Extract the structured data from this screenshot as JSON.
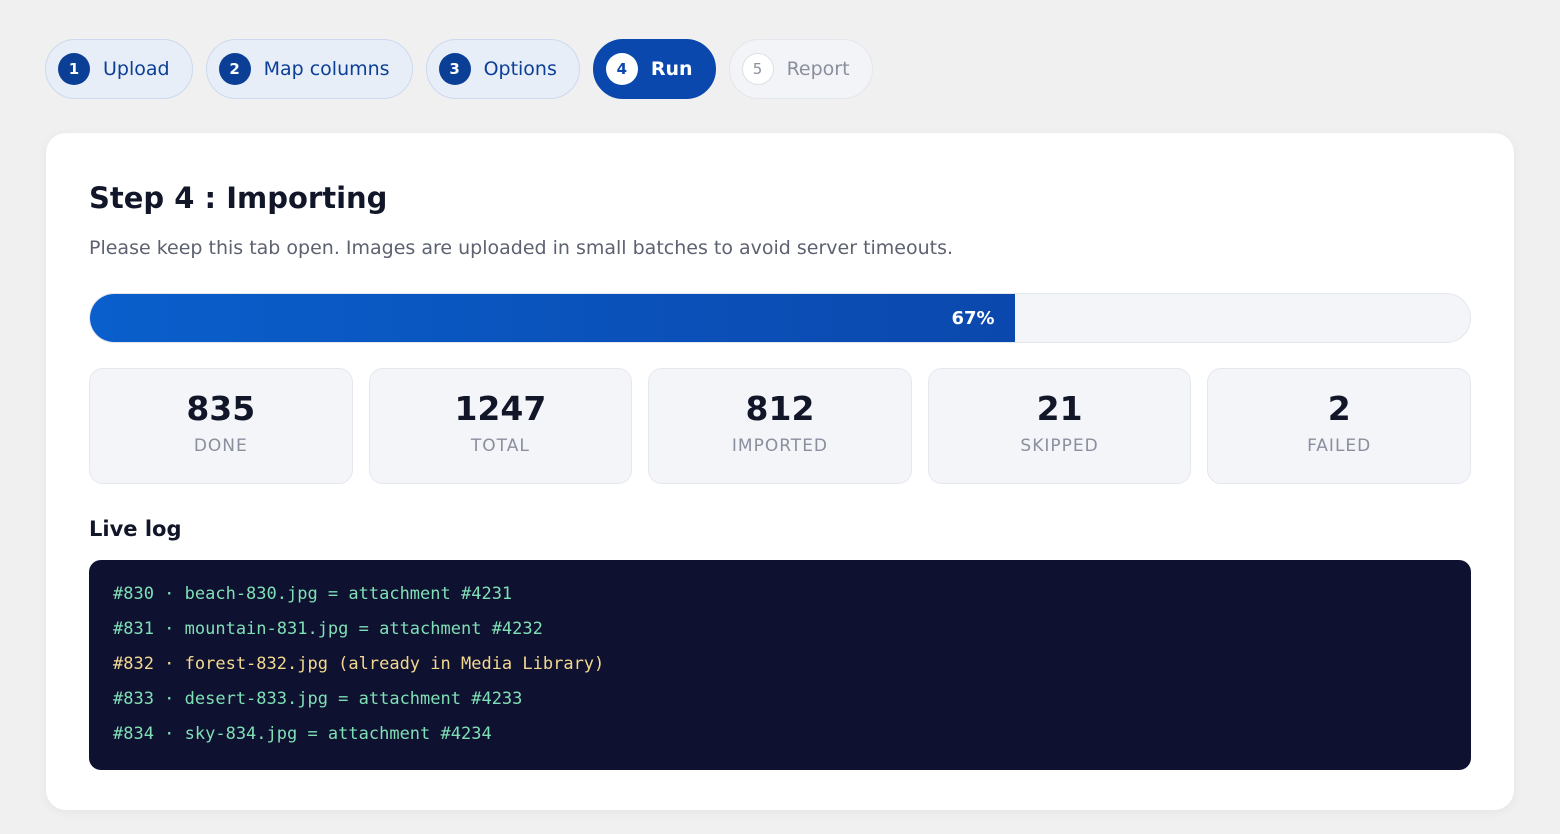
{
  "steps": [
    {
      "number": "1",
      "label": "Upload",
      "state": "done"
    },
    {
      "number": "2",
      "label": "Map columns",
      "state": "done"
    },
    {
      "number": "3",
      "label": "Options",
      "state": "done"
    },
    {
      "number": "4",
      "label": "Run",
      "state": "active"
    },
    {
      "number": "5",
      "label": "Report",
      "state": "pending"
    }
  ],
  "main": {
    "title": "Step 4 : Importing",
    "subtitle": "Please keep this tab open. Images are uploaded in small batches to avoid server timeouts.",
    "progress": {
      "percent": 67,
      "label": "67%"
    }
  },
  "stats": [
    {
      "value": "835",
      "label": "DONE"
    },
    {
      "value": "1247",
      "label": "TOTAL"
    },
    {
      "value": "812",
      "label": "IMPORTED"
    },
    {
      "value": "21",
      "label": "SKIPPED"
    },
    {
      "value": "2",
      "label": "FAILED"
    }
  ],
  "log": {
    "title": "Live log",
    "lines": [
      {
        "text": "#830 · beach-830.jpg = attachment #4231",
        "status": "ok"
      },
      {
        "text": "#831 · mountain-831.jpg = attachment #4232",
        "status": "ok"
      },
      {
        "text": "#832 · forest-832.jpg (already in Media Library)",
        "status": "skipped"
      },
      {
        "text": "#833 · desert-833.jpg = attachment #4233",
        "status": "ok"
      },
      {
        "text": "#834 · sky-834.jpg = attachment #4234",
        "status": "ok"
      }
    ]
  },
  "colors": {
    "accent": "#0b48ad",
    "log_background": "#0f1130",
    "log_ok": "#7fe0b6",
    "log_skipped": "#f3d98f"
  }
}
